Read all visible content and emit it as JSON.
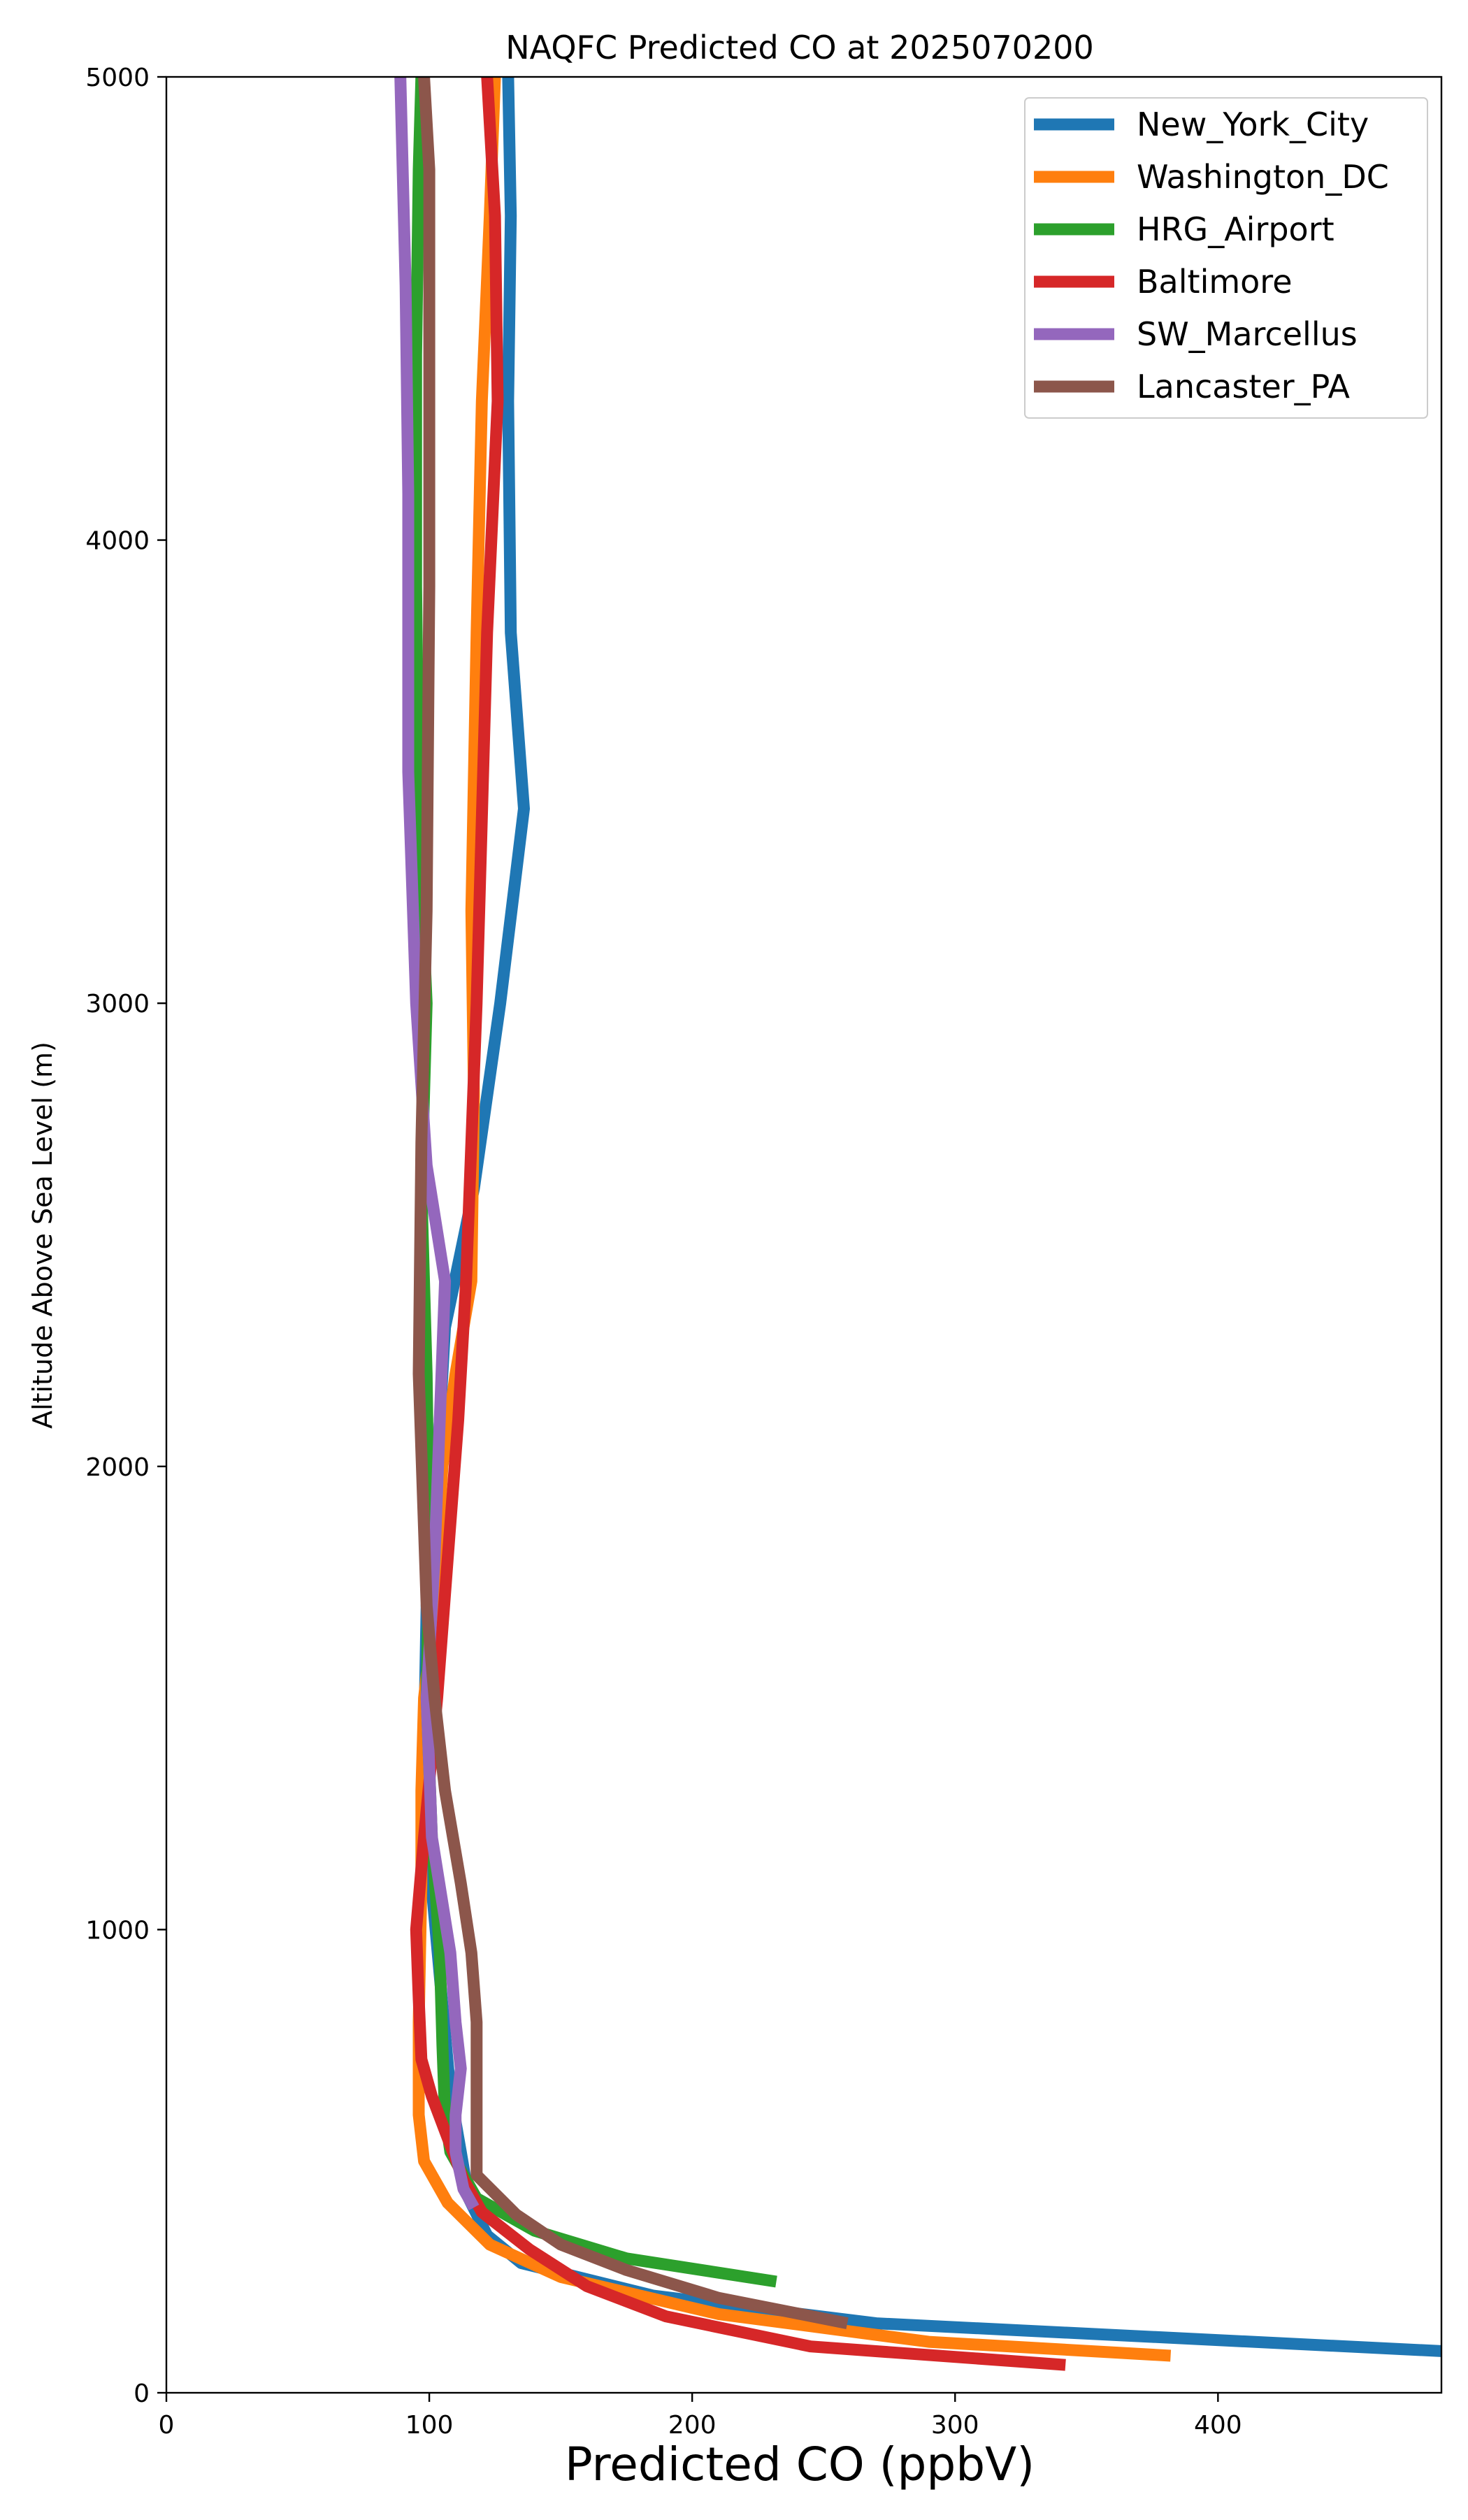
{
  "chart_data": {
    "type": "line",
    "title": "NAQFC Predicted CO at 2025070200",
    "xlabel": "Predicted CO (ppbV)",
    "ylabel": "Altitude Above Sea Level (m)",
    "xlim": [
      0,
      485
    ],
    "ylim": [
      0,
      5000
    ],
    "xticks": [
      "0",
      "100",
      "200",
      "300",
      "400"
    ],
    "yticks": [
      "0",
      "1000",
      "2000",
      "3000",
      "4000",
      "5000"
    ],
    "grid": false,
    "legend_position": "top-right",
    "series": [
      {
        "name": "New_York_City",
        "color": "#1f77b4",
        "points": [
          [
            485,
            90
          ],
          [
            270,
            150
          ],
          [
            185,
            210
          ],
          [
            135,
            280
          ],
          [
            122,
            340
          ],
          [
            115,
            420
          ],
          [
            112,
            520
          ],
          [
            108,
            650
          ],
          [
            104,
            900
          ],
          [
            100,
            1150
          ],
          [
            98,
            1400
          ],
          [
            99,
            1700
          ],
          [
            103,
            2000
          ],
          [
            106,
            2300
          ],
          [
            117,
            2600
          ],
          [
            127,
            3000
          ],
          [
            136,
            3420
          ],
          [
            131,
            3800
          ],
          [
            130,
            4300
          ],
          [
            131,
            4700
          ],
          [
            130,
            5000
          ]
        ]
      },
      {
        "name": "Washington_DC",
        "color": "#ff7f0e",
        "points": [
          [
            382,
            80
          ],
          [
            290,
            110
          ],
          [
            210,
            170
          ],
          [
            150,
            250
          ],
          [
            123,
            320
          ],
          [
            107,
            410
          ],
          [
            98,
            500
          ],
          [
            96,
            600
          ],
          [
            96,
            800
          ],
          [
            97,
            1100
          ],
          [
            97,
            1300
          ],
          [
            98,
            1500
          ],
          [
            102,
            1700
          ],
          [
            105,
            2000
          ],
          [
            110,
            2200
          ],
          [
            116,
            2400
          ],
          [
            117,
            2800
          ],
          [
            116,
            3200
          ],
          [
            118,
            3800
          ],
          [
            120,
            4300
          ],
          [
            123,
            4700
          ],
          [
            125,
            5000
          ]
        ]
      },
      {
        "name": "HRG_Airport",
        "color": "#2ca02c",
        "points": [
          [
            232,
            240
          ],
          [
            175,
            290
          ],
          [
            140,
            350
          ],
          [
            118,
            420
          ],
          [
            108,
            520
          ],
          [
            106,
            600
          ],
          [
            105,
            750
          ],
          [
            104,
            950
          ],
          [
            101,
            1200
          ],
          [
            99,
            1500
          ],
          [
            100,
            1800
          ],
          [
            99,
            2200
          ],
          [
            97,
            2600
          ],
          [
            99,
            3000
          ],
          [
            96,
            3400
          ],
          [
            95,
            3900
          ],
          [
            95,
            4400
          ],
          [
            96,
            4800
          ],
          [
            97,
            5000
          ]
        ]
      },
      {
        "name": "Baltimore",
        "color": "#d62728",
        "points": [
          [
            342,
            60
          ],
          [
            245,
            100
          ],
          [
            190,
            165
          ],
          [
            160,
            230
          ],
          [
            138,
            310
          ],
          [
            120,
            390
          ],
          [
            113,
            460
          ],
          [
            107,
            550
          ],
          [
            101,
            640
          ],
          [
            97,
            720
          ],
          [
            96,
            850
          ],
          [
            95,
            1000
          ],
          [
            98,
            1200
          ],
          [
            103,
            1500
          ],
          [
            107,
            1800
          ],
          [
            111,
            2100
          ],
          [
            114,
            2400
          ],
          [
            116,
            2700
          ],
          [
            118,
            3000
          ],
          [
            120,
            3400
          ],
          [
            122,
            3800
          ],
          [
            126,
            4300
          ],
          [
            125,
            4700
          ],
          [
            122,
            5000
          ]
        ]
      },
      {
        "name": "SW_Marcellus",
        "color": "#9467bd",
        "points": [
          [
            117,
            400
          ],
          [
            113,
            440
          ],
          [
            110,
            520
          ],
          [
            110,
            600
          ],
          [
            112,
            700
          ],
          [
            110,
            800
          ],
          [
            108,
            950
          ],
          [
            101,
            1200
          ],
          [
            99,
            1500
          ],
          [
            102,
            1800
          ],
          [
            104,
            2100
          ],
          [
            106,
            2400
          ],
          [
            99,
            2650
          ],
          [
            95,
            3000
          ],
          [
            92,
            3500
          ],
          [
            92,
            4100
          ],
          [
            91,
            4550
          ],
          [
            89,
            5000
          ]
        ]
      },
      {
        "name": "Lancaster_PA",
        "color": "#8c564b",
        "points": [
          [
            259,
            150
          ],
          [
            210,
            205
          ],
          [
            175,
            265
          ],
          [
            150,
            320
          ],
          [
            133,
            385
          ],
          [
            118,
            470
          ],
          [
            118,
            560
          ],
          [
            118,
            650
          ],
          [
            118,
            800
          ],
          [
            116,
            950
          ],
          [
            112,
            1100
          ],
          [
            106,
            1300
          ],
          [
            102,
            1500
          ],
          [
            99,
            1700
          ],
          [
            96,
            2200
          ],
          [
            97,
            2700
          ],
          [
            99,
            3200
          ],
          [
            100,
            3900
          ],
          [
            100,
            4400
          ],
          [
            100,
            4800
          ],
          [
            98,
            5000
          ]
        ]
      }
    ]
  }
}
